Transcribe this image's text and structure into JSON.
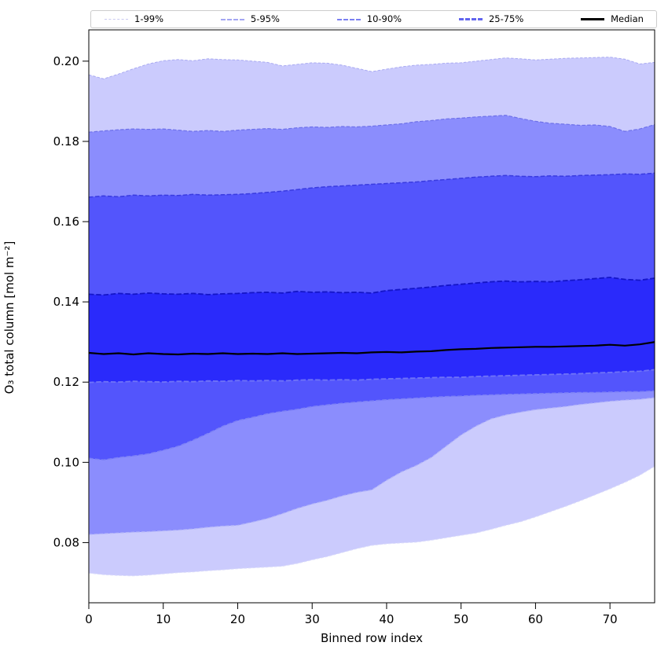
{
  "figure": {
    "background": "#ffffff",
    "frame_color": "#000000"
  },
  "chart_data": {
    "type": "area",
    "subtype": "percentile-fan-chart",
    "title": "",
    "xlabel": "Binned row index",
    "ylabel": "O₃ total column [mol m⁻²]",
    "xlim": [
      0,
      76
    ],
    "ylim": [
      0.065,
      0.2078
    ],
    "grid": false,
    "legend_position": "top-outside-horizontal",
    "x_ticks": [
      "0",
      "10",
      "20",
      "30",
      "40",
      "50",
      "60",
      "70"
    ],
    "x_tick_values": [
      0,
      10,
      20,
      30,
      40,
      50,
      60,
      70
    ],
    "y_ticks": [
      "0.08",
      "0.10",
      "0.12",
      "0.14",
      "0.16",
      "0.18",
      "0.20"
    ],
    "y_tick_values": [
      0.08,
      0.1,
      0.12,
      0.14,
      0.16,
      0.18,
      0.2
    ],
    "x": [
      0,
      2,
      4,
      6,
      8,
      10,
      12,
      14,
      16,
      18,
      20,
      22,
      24,
      26,
      28,
      30,
      32,
      34,
      36,
      38,
      40,
      42,
      44,
      46,
      48,
      50,
      52,
      54,
      56,
      58,
      60,
      62,
      64,
      66,
      68,
      70,
      72,
      74,
      76
    ],
    "series": [
      {
        "name": "p1",
        "values": [
          0.0724,
          0.072,
          0.0718,
          0.0717,
          0.0719,
          0.0722,
          0.0725,
          0.0727,
          0.073,
          0.0732,
          0.0735,
          0.0737,
          0.0739,
          0.0741,
          0.0748,
          0.0757,
          0.0765,
          0.0775,
          0.0785,
          0.0793,
          0.0797,
          0.0799,
          0.0801,
          0.0806,
          0.0812,
          0.0818,
          0.0824,
          0.0833,
          0.0843,
          0.0852,
          0.0864,
          0.0877,
          0.089,
          0.0904,
          0.0919,
          0.0934,
          0.095,
          0.0968,
          0.099
        ]
      },
      {
        "name": "p5",
        "values": [
          0.082,
          0.0822,
          0.0824,
          0.0826,
          0.0827,
          0.0829,
          0.0831,
          0.0834,
          0.0838,
          0.0841,
          0.0843,
          0.0851,
          0.086,
          0.0872,
          0.0885,
          0.0896,
          0.0905,
          0.0916,
          0.0925,
          0.0931,
          0.0955,
          0.0976,
          0.0992,
          0.1012,
          0.104,
          0.1068,
          0.109,
          0.1108,
          0.1118,
          0.1125,
          0.1131,
          0.1135,
          0.1139,
          0.1144,
          0.1148,
          0.1152,
          0.1155,
          0.1157,
          0.1161
        ]
      },
      {
        "name": "p10",
        "values": [
          0.101,
          0.1006,
          0.1012,
          0.1016,
          0.1021,
          0.103,
          0.104,
          0.1055,
          0.1072,
          0.109,
          0.1104,
          0.1112,
          0.1121,
          0.1127,
          0.1132,
          0.1139,
          0.1143,
          0.1147,
          0.115,
          0.1153,
          0.1156,
          0.1158,
          0.116,
          0.1162,
          0.1164,
          0.1165,
          0.1167,
          0.1168,
          0.1169,
          0.117,
          0.1171,
          0.1172,
          0.1173,
          0.1174,
          0.1174,
          0.1175,
          0.1176,
          0.1176,
          0.1178
        ]
      },
      {
        "name": "p25",
        "values": [
          0.1199,
          0.1201,
          0.12,
          0.1202,
          0.1201,
          0.12,
          0.1202,
          0.1201,
          0.1203,
          0.1202,
          0.1204,
          0.1203,
          0.1204,
          0.1203,
          0.1205,
          0.1206,
          0.1205,
          0.1206,
          0.1205,
          0.1207,
          0.1208,
          0.1209,
          0.121,
          0.1211,
          0.1212,
          0.1212,
          0.1214,
          0.1215,
          0.1216,
          0.1217,
          0.1218,
          0.1219,
          0.122,
          0.1221,
          0.1223,
          0.1224,
          0.1226,
          0.1227,
          0.1231
        ]
      },
      {
        "name": "median",
        "values": [
          0.1273,
          0.127,
          0.1272,
          0.1269,
          0.1272,
          0.127,
          0.1269,
          0.1271,
          0.127,
          0.1272,
          0.127,
          0.1271,
          0.127,
          0.1272,
          0.127,
          0.1271,
          0.1272,
          0.1273,
          0.1272,
          0.1274,
          0.1275,
          0.1274,
          0.1276,
          0.1277,
          0.128,
          0.1282,
          0.1283,
          0.1285,
          0.1286,
          0.1287,
          0.1288,
          0.1288,
          0.1289,
          0.129,
          0.1291,
          0.1293,
          0.1291,
          0.1294,
          0.13
        ]
      },
      {
        "name": "p75",
        "values": [
          0.1419,
          0.1417,
          0.1421,
          0.1419,
          0.1422,
          0.142,
          0.1419,
          0.1421,
          0.1418,
          0.142,
          0.1421,
          0.1423,
          0.1424,
          0.1422,
          0.1426,
          0.1424,
          0.1425,
          0.1423,
          0.1424,
          0.1422,
          0.1428,
          0.1431,
          0.1434,
          0.1437,
          0.1441,
          0.1444,
          0.1447,
          0.145,
          0.1452,
          0.145,
          0.1451,
          0.145,
          0.1453,
          0.1455,
          0.1458,
          0.1461,
          0.1456,
          0.1454,
          0.1459
        ]
      },
      {
        "name": "p90",
        "values": [
          0.1661,
          0.1664,
          0.1662,
          0.1666,
          0.1664,
          0.1666,
          0.1665,
          0.1668,
          0.1666,
          0.1667,
          0.1668,
          0.167,
          0.1673,
          0.1676,
          0.168,
          0.1684,
          0.1687,
          0.1689,
          0.1691,
          0.1693,
          0.1695,
          0.1697,
          0.1699,
          0.1702,
          0.1705,
          0.1708,
          0.1711,
          0.1713,
          0.1715,
          0.1713,
          0.1712,
          0.1714,
          0.1713,
          0.1715,
          0.1716,
          0.1717,
          0.1719,
          0.1718,
          0.1721
        ]
      },
      {
        "name": "p95",
        "values": [
          0.1823,
          0.1826,
          0.1829,
          0.1831,
          0.183,
          0.1831,
          0.1828,
          0.1825,
          0.1827,
          0.1825,
          0.1828,
          0.183,
          0.1832,
          0.183,
          0.1834,
          0.1836,
          0.1835,
          0.1837,
          0.1836,
          0.1838,
          0.1841,
          0.1844,
          0.1849,
          0.1852,
          0.1856,
          0.1858,
          0.1861,
          0.1863,
          0.1865,
          0.1857,
          0.185,
          0.1845,
          0.1843,
          0.184,
          0.1841,
          0.1837,
          0.1825,
          0.1831,
          0.1842
        ]
      },
      {
        "name": "p99",
        "values": [
          0.1966,
          0.1956,
          0.1968,
          0.1981,
          0.1993,
          0.2001,
          0.2004,
          0.2001,
          0.2006,
          0.2004,
          0.2003,
          0.2,
          0.1997,
          0.1988,
          0.1992,
          0.1996,
          0.1995,
          0.199,
          0.1982,
          0.1974,
          0.198,
          0.1986,
          0.199,
          0.1992,
          0.1995,
          0.1996,
          0.2,
          0.2004,
          0.2008,
          0.2006,
          0.2003,
          0.2005,
          0.2007,
          0.2008,
          0.2009,
          0.201,
          0.2005,
          0.1993,
          0.1997
        ]
      }
    ],
    "bands": [
      {
        "label": "1-99%",
        "lower": "p1",
        "upper": "p99",
        "fill": "#cbcbfd",
        "edge_upper": "#a9aaf1",
        "edge_lower": "#dadbfa",
        "edge_width": 1.0,
        "dash": "3.5,2"
      },
      {
        "label": "5-95%",
        "lower": "p5",
        "upper": "p95",
        "fill": "#8b8dfd",
        "edge_upper": "#6d70e9",
        "edge_lower": "#b5b7f8",
        "edge_width": 1.2,
        "dash": "4.5,2.2"
      },
      {
        "label": "10-90%",
        "lower": "p10",
        "upper": "p90",
        "fill": "#5355fc",
        "edge_upper": "#393be0",
        "edge_lower": "#7e82f6",
        "edge_width": 1.5,
        "dash": "5.5,2.5"
      },
      {
        "label": "25-75%",
        "lower": "p25",
        "upper": "p75",
        "fill": "#2a2afb",
        "edge_upper": "#1415c8",
        "edge_lower": "#6f73f7",
        "edge_width": 1.8,
        "dash": "6.5,2.8"
      }
    ],
    "median_line": {
      "series": "median",
      "label": "Median",
      "color": "#000000",
      "width": 2.2
    },
    "legend": {
      "items": [
        {
          "label": "1-99%",
          "color": "#c9c9f0",
          "sample_width": 1.5,
          "style": "dashed"
        },
        {
          "label": "5-95%",
          "color": "#a3a6f3",
          "sample_width": 2,
          "style": "dashed"
        },
        {
          "label": "10-90%",
          "color": "#7b80f2",
          "sample_width": 2.5,
          "style": "dashed"
        },
        {
          "label": "25-75%",
          "color": "#6165ef",
          "sample_width": 3,
          "style": "dashed"
        },
        {
          "label": "Median",
          "color": "#000000",
          "sample_width": 3,
          "style": "solid"
        }
      ]
    }
  }
}
